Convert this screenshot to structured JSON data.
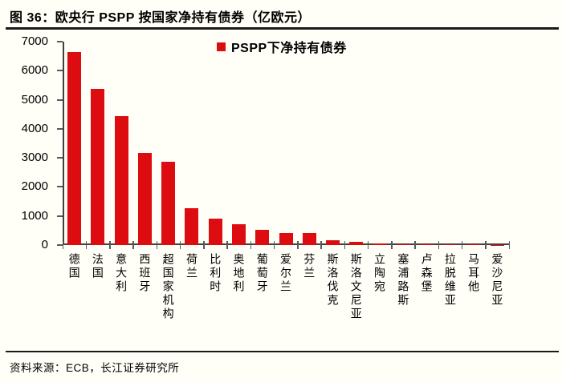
{
  "figure": {
    "title": "图 36：欧央行 PSPP 按国家净持有债券（亿欧元）",
    "source_note": "资料来源：ECB，长江证券研究所"
  },
  "legend": {
    "label": "PSPP下净持有债券",
    "marker": "red-square-icon"
  },
  "colors": {
    "bar": "#dd0c10",
    "axis": "#404040",
    "tick": "#595959",
    "text": "#000000",
    "rule": "#1a1a1a",
    "background": "#fffef7"
  },
  "chart_data": {
    "type": "bar",
    "title": "图 36：欧央行 PSPP 按国家净持有债券（亿欧元）",
    "categories": [
      "德国",
      "法国",
      "意大利",
      "西班牙",
      "超国家机构",
      "荷兰",
      "比利时",
      "奥地利",
      "葡萄牙",
      "爱尔兰",
      "芬兰",
      "斯洛伐克",
      "斯洛文尼亚",
      "立陶宛",
      "塞浦路斯",
      "卢森堡",
      "拉脱维亚",
      "马耳他",
      "爱沙尼亚"
    ],
    "values": [
      6640,
      5380,
      4440,
      3180,
      2870,
      1280,
      910,
      720,
      520,
      415,
      400,
      160,
      100,
      55,
      35,
      33,
      30,
      14,
      4
    ],
    "series_name": "PSPP下净持有债券",
    "xlabel": "",
    "ylabel": "",
    "ylim": [
      0,
      7000
    ],
    "y_ticks": [
      0,
      1000,
      2000,
      3000,
      4000,
      5000,
      6000,
      7000
    ],
    "grid": false,
    "legend_position": "top-center"
  }
}
